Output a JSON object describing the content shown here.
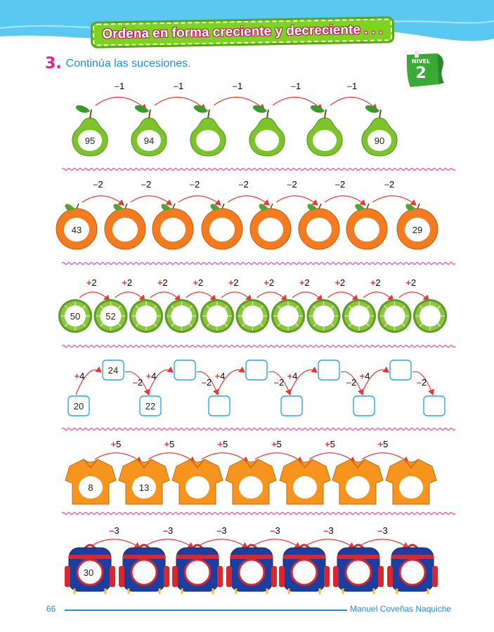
{
  "page": {
    "title": "Ordena en forma creciente y decreciente . . .",
    "exercise_number": "3.",
    "instruction": "Continúa las sucesiones.",
    "level_label": "NIVEL",
    "level_number": "2",
    "page_number": "66",
    "author": "Manuel Coveñas Naquiche"
  },
  "rows": [
    {
      "item": "pear",
      "step_sign": "–",
      "step_value": "1",
      "values": [
        "95",
        "94",
        "",
        "",
        "",
        "90"
      ]
    },
    {
      "item": "orange",
      "step_sign": "–",
      "step_value": "2",
      "values": [
        "43",
        "",
        "",
        "",
        "",
        "",
        "",
        "29"
      ]
    },
    {
      "item": "lime-slice",
      "step_sign": "+",
      "step_value": "2",
      "values": [
        "50",
        "52",
        "",
        "",
        "",
        "",
        "",
        "",
        "",
        "",
        ""
      ]
    },
    {
      "item": "zigzag-boxes",
      "up_sign": "+",
      "up_value": "4",
      "down_sign": "–",
      "down_value": "2",
      "bottom_values": [
        "20",
        "22",
        "",
        "",
        "",
        ""
      ],
      "top_values": [
        "24",
        "",
        "",
        "",
        ""
      ]
    },
    {
      "item": "shirt",
      "step_sign": "+",
      "step_value": "5",
      "values": [
        "8",
        "13",
        "",
        "",
        "",
        "",
        ""
      ]
    },
    {
      "item": "backpack",
      "step_sign": "–",
      "step_value": "3",
      "values": [
        "30",
        "",
        "",
        "",
        "",
        "",
        ""
      ]
    }
  ],
  "colors": {
    "header_blue": "#5bc8f2",
    "title_green": "#7ed321",
    "title_outline": "#c2185b",
    "exercise_magenta": "#e91e8c",
    "text_blue": "#1f8fd3",
    "level_badge_green": "#3aa935",
    "arrow_red": "#e53935",
    "divider_pink": "#e4508d",
    "pear_green": "#7dc42a",
    "orange": "#f47c20",
    "lime": "#8cc63f",
    "shirt_orange": "#f7941d",
    "backpack_blue": "#1b3fa0",
    "backpack_red": "#d7282f",
    "box_blue": "#29a8e0"
  },
  "icons": [
    "pear-icon",
    "orange-icon",
    "lime-slice-icon",
    "shirt-icon",
    "backpack-icon"
  ]
}
